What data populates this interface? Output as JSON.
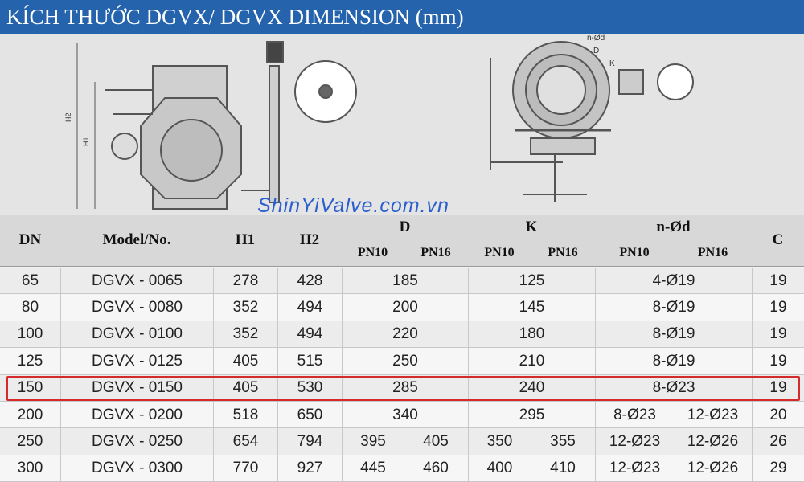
{
  "header": {
    "title": "KÍCH THƯỚC DGVX/ DGVX DIMENSION (mm)"
  },
  "drawing": {
    "watermark": "ShinYiValve.com.vn",
    "labels": {
      "h2": "H2",
      "h1": "H1",
      "nd": "n-Ød",
      "d": "D",
      "k": "K"
    }
  },
  "table": {
    "header": {
      "dn": "DN",
      "model": "Model/No.",
      "h1": "H1",
      "h2": "H2",
      "d": "D",
      "k": "K",
      "nd": "n-Ød",
      "c": "C",
      "sub": [
        "PN10",
        "PN16",
        "PN10",
        "PN16",
        "PN10",
        "PN16"
      ]
    },
    "rows": [
      {
        "dn": 65,
        "model": "DGVX - 0065",
        "h1": 278,
        "h2": 428,
        "d": [
          185
        ],
        "k": [
          125
        ],
        "nd": [
          "4-Ø19"
        ],
        "c": 19
      },
      {
        "dn": 80,
        "model": "DGVX - 0080",
        "h1": 352,
        "h2": 494,
        "d": [
          200
        ],
        "k": [
          145
        ],
        "nd": [
          "8-Ø19"
        ],
        "c": 19
      },
      {
        "dn": 100,
        "model": "DGVX - 0100",
        "h1": 352,
        "h2": 494,
        "d": [
          220
        ],
        "k": [
          180
        ],
        "nd": [
          "8-Ø19"
        ],
        "c": 19
      },
      {
        "dn": 125,
        "model": "DGVX - 0125",
        "h1": 405,
        "h2": 515,
        "d": [
          250
        ],
        "k": [
          210
        ],
        "nd": [
          "8-Ø19"
        ],
        "c": 19
      },
      {
        "dn": 150,
        "model": "DGVX - 0150",
        "h1": 405,
        "h2": 530,
        "d": [
          285
        ],
        "k": [
          240
        ],
        "nd": [
          "8-Ø23"
        ],
        "c": 19,
        "highlighted": true
      },
      {
        "dn": 200,
        "model": "DGVX - 0200",
        "h1": 518,
        "h2": 650,
        "d": [
          340
        ],
        "k": [
          295
        ],
        "nd": [
          "8-Ø23",
          "12-Ø23"
        ],
        "c": 20
      },
      {
        "dn": 250,
        "model": "DGVX - 0250",
        "h1": 654,
        "h2": 794,
        "d": [
          395,
          405
        ],
        "k": [
          350,
          355
        ],
        "nd": [
          "12-Ø23",
          "12-Ø26"
        ],
        "c": 26
      },
      {
        "dn": 300,
        "model": "DGVX - 0300",
        "h1": 770,
        "h2": 927,
        "d": [
          445,
          460
        ],
        "k": [
          400,
          410
        ],
        "nd": [
          "12-Ø23",
          "12-Ø26"
        ],
        "c": 29
      }
    ]
  }
}
